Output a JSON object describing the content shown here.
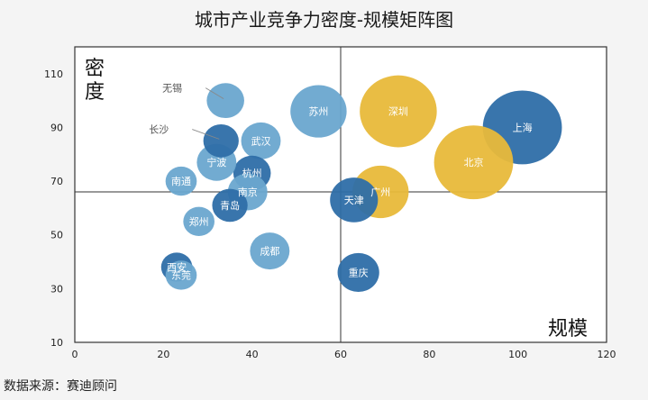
{
  "title": "城市产业竞争力密度-规模矩阵图",
  "source": "数据来源：赛迪顾问",
  "colors": {
    "light-blue": "#6aa6cf",
    "dark-blue": "#2e6ea8",
    "gold": "#e8b93a",
    "bubble_text": "#ffffff",
    "callout_text": "#555555"
  },
  "chart_data": {
    "type": "bubble",
    "title": "城市产业竞争力密度-规模矩阵图",
    "xlabel": "规模",
    "ylabel": "密度",
    "xlim": [
      0,
      120
    ],
    "ylim": [
      10,
      120
    ],
    "x_ticks": [
      0,
      20,
      40,
      60,
      80,
      100,
      120
    ],
    "y_ticks": [
      10,
      30,
      50,
      70,
      90,
      110
    ],
    "divider": {
      "x": 60,
      "y": 66
    },
    "grid": false,
    "points": [
      {
        "name": "苏州",
        "x": 55,
        "y": 96,
        "size": 1.35,
        "color": "light-blue"
      },
      {
        "name": "深圳",
        "x": 73,
        "y": 96,
        "size": 1.85,
        "color": "gold"
      },
      {
        "name": "上海",
        "x": 101,
        "y": 90,
        "size": 1.9,
        "color": "dark-blue"
      },
      {
        "name": "北京",
        "x": 90,
        "y": 77,
        "size": 1.9,
        "color": "gold"
      },
      {
        "name": "广州",
        "x": 69,
        "y": 66,
        "size": 1.35,
        "color": "gold"
      },
      {
        "name": "天津",
        "x": 63,
        "y": 63,
        "size": 1.15,
        "color": "dark-blue"
      },
      {
        "name": "重庆",
        "x": 64,
        "y": 36,
        "size": 1.0,
        "color": "dark-blue"
      },
      {
        "name": "成都",
        "x": 44,
        "y": 44,
        "size": 0.95,
        "color": "light-blue"
      },
      {
        "name": "武汉",
        "x": 42,
        "y": 85,
        "size": 0.95,
        "color": "light-blue"
      },
      {
        "name": "杭州",
        "x": 40,
        "y": 73,
        "size": 0.9,
        "color": "dark-blue"
      },
      {
        "name": "南京",
        "x": 39,
        "y": 66,
        "size": 0.95,
        "color": "light-blue"
      },
      {
        "name": "青岛",
        "x": 35,
        "y": 61,
        "size": 0.85,
        "color": "dark-blue"
      },
      {
        "name": "郑州",
        "x": 28,
        "y": 55,
        "size": 0.75,
        "color": "light-blue"
      },
      {
        "name": "宁波",
        "x": 32,
        "y": 77,
        "size": 0.95,
        "color": "light-blue"
      },
      {
        "name": "南通",
        "x": 24,
        "y": 70,
        "size": 0.75,
        "color": "light-blue"
      },
      {
        "name": "无锡",
        "x": 34,
        "y": 100,
        "size": 0.9,
        "color": "light-blue"
      },
      {
        "name": "长沙",
        "x": 33,
        "y": 85,
        "size": 0.85,
        "color": "dark-blue"
      },
      {
        "name": "西安",
        "x": 23,
        "y": 38,
        "size": 0.75,
        "color": "dark-blue"
      },
      {
        "name": "东莞",
        "x": 24,
        "y": 35,
        "size": 0.75,
        "color": "light-blue"
      }
    ]
  }
}
